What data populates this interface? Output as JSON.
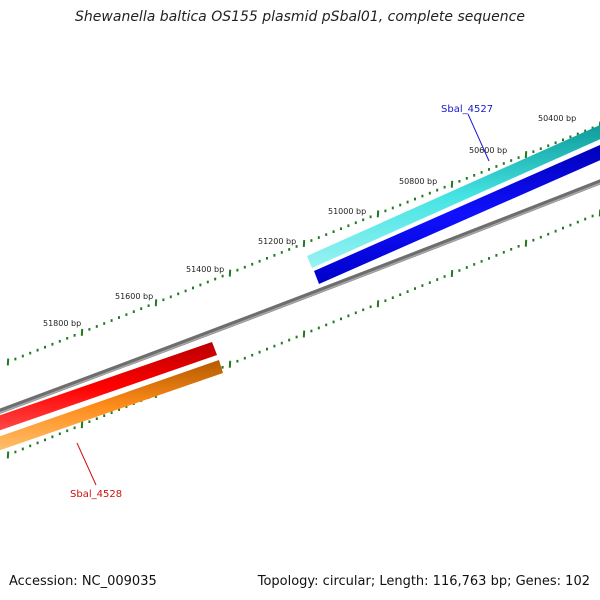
{
  "title": "Shewanella baltica OS155 plasmid pSbal01, complete sequence",
  "footer": {
    "accession": "Accession: NC_009035",
    "summary": "Topology: circular; Length: 116,763 bp; Genes: 102"
  },
  "scale_labels": [
    {
      "id": "50400",
      "text": "50400 bp"
    },
    {
      "id": "50600",
      "text": "50600 bp"
    },
    {
      "id": "50800",
      "text": "50800 bp"
    },
    {
      "id": "51000",
      "text": "51000 bp"
    },
    {
      "id": "51200",
      "text": "51200 bp"
    },
    {
      "id": "51400",
      "text": "51400 bp"
    },
    {
      "id": "51600",
      "text": "51600 bp"
    },
    {
      "id": "51800",
      "text": "51800 bp"
    }
  ],
  "genes": [
    {
      "id": "sbal-4527",
      "name": "Sbal_4527",
      "color": "#1a1acc"
    },
    {
      "id": "sbal-4528",
      "name": "Sbal_4528",
      "color": "#cc1111"
    }
  ],
  "colors": {
    "backbone": "#7a7a7a",
    "ticks": "#1f7a1f",
    "cyan_feature": "#22c4c4",
    "blue_feature": "#0a0ae6",
    "red_feature": "#ee0000",
    "orange_feature": "#ff8c1a"
  }
}
